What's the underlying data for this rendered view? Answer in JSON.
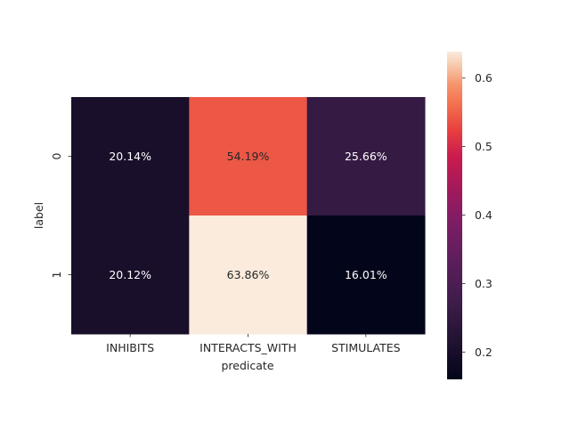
{
  "chart_data": {
    "type": "heatmap",
    "title": "",
    "xlabel": "predicate",
    "ylabel": "label",
    "x_categories": [
      "INHIBITS",
      "INTERACTS_WITH",
      "STIMULATES"
    ],
    "y_categories": [
      "0",
      "1"
    ],
    "values": [
      [
        0.2014,
        0.5419,
        0.2566
      ],
      [
        0.2012,
        0.6386,
        0.1601
      ]
    ],
    "cell_labels": [
      [
        "20.14%",
        "54.19%",
        "25.66%"
      ],
      [
        "20.12%",
        "63.86%",
        "16.01%"
      ]
    ],
    "colormap": "rocket",
    "color_range": [
      0.1601,
      0.6386
    ],
    "colorbar": {
      "ticks": [
        0.2,
        0.3,
        0.4,
        0.5,
        0.6
      ],
      "tick_labels": [
        "0.2",
        "0.3",
        "0.4",
        "0.5",
        "0.6"
      ],
      "placement": "right"
    },
    "grid": false
  }
}
